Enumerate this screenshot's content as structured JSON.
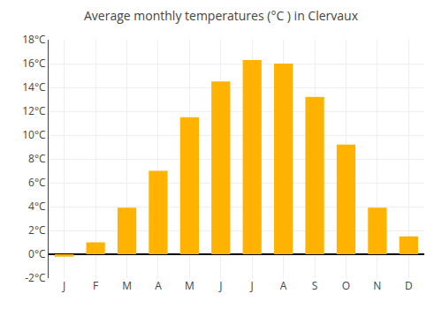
{
  "chart_data": {
    "type": "bar",
    "title": "Average monthly temperatures (°C ) in Clervaux",
    "categories": [
      "J",
      "F",
      "M",
      "A",
      "M",
      "J",
      "J",
      "A",
      "S",
      "O",
      "N",
      "D"
    ],
    "values": [
      -0.2,
      1.0,
      3.9,
      7.0,
      11.5,
      14.5,
      16.3,
      16.0,
      13.2,
      9.2,
      3.9,
      1.5
    ],
    "color": "#FFB300",
    "ylim": [
      -2,
      18
    ],
    "yticks": [
      {
        "value": -2,
        "label": "-2°C"
      },
      {
        "value": 0,
        "label": "0°C"
      },
      {
        "value": 2,
        "label": "2°C"
      },
      {
        "value": 4,
        "label": "4°C"
      },
      {
        "value": 6,
        "label": "6°C"
      },
      {
        "value": 8,
        "label": "8°C"
      },
      {
        "value": 10,
        "label": "10°C"
      },
      {
        "value": 12,
        "label": "12°C"
      },
      {
        "value": 14,
        "label": "14°C"
      },
      {
        "value": 16,
        "label": "16°C"
      },
      {
        "value": 18,
        "label": "18°C"
      }
    ],
    "grid": true
  }
}
